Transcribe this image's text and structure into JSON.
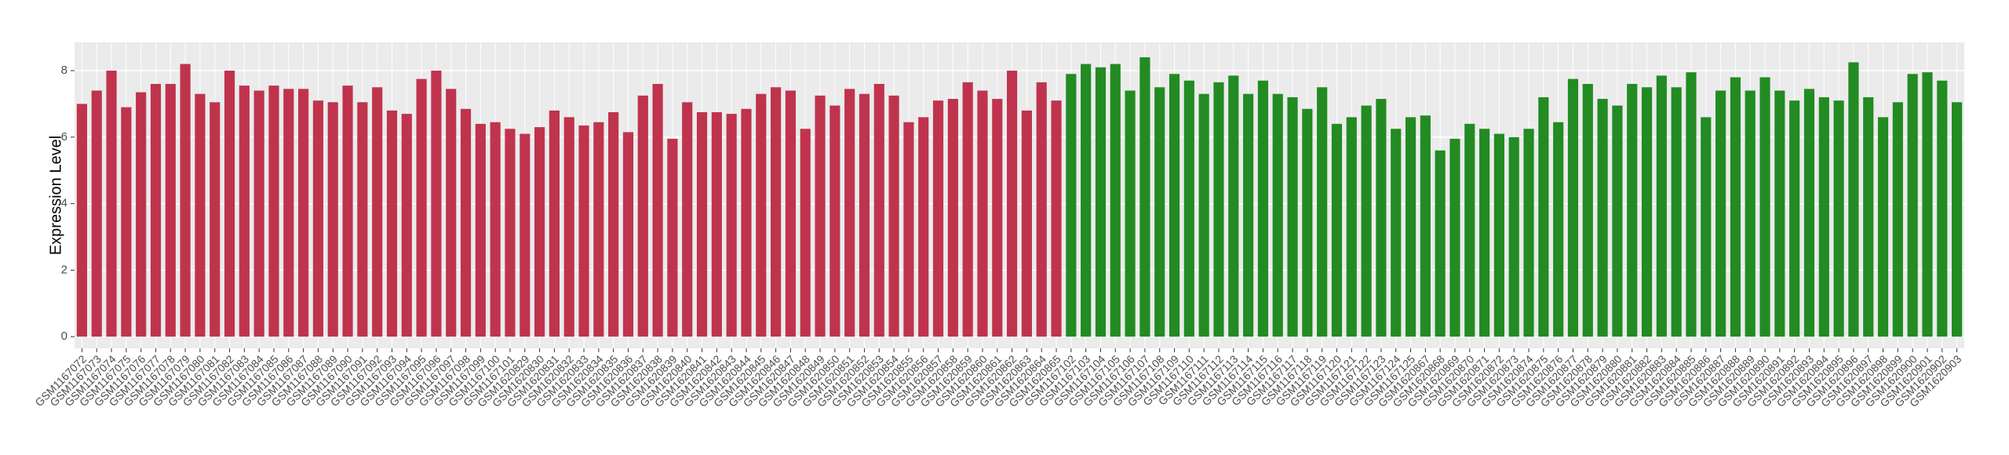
{
  "chart_data": {
    "type": "bar",
    "y_label": "Expression Level",
    "ylim": [
      -0.35,
      8.85
    ],
    "yticks": [
      0,
      2,
      4,
      6,
      8
    ],
    "grid": true,
    "categories": [
      "GSM1167072",
      "GSM1167073",
      "GSM1167074",
      "GSM1167075",
      "GSM1167076",
      "GSM1167077",
      "GSM1167078",
      "GSM1167079",
      "GSM1167080",
      "GSM1167081",
      "GSM1167082",
      "GSM1167083",
      "GSM1167084",
      "GSM1167085",
      "GSM1167086",
      "GSM1167087",
      "GSM1167088",
      "GSM1167089",
      "GSM1167090",
      "GSM1167091",
      "GSM1167092",
      "GSM1167093",
      "GSM1167094",
      "GSM1167095",
      "GSM1167096",
      "GSM1167097",
      "GSM1167098",
      "GSM1167099",
      "GSM1167100",
      "GSM1167101",
      "GSM1620829",
      "GSM1620830",
      "GSM1620831",
      "GSM1620832",
      "GSM1620833",
      "GSM1620834",
      "GSM1620835",
      "GSM1620836",
      "GSM1620837",
      "GSM1620838",
      "GSM1620839",
      "GSM1620840",
      "GSM1620841",
      "GSM1620842",
      "GSM1620843",
      "GSM1620844",
      "GSM1620845",
      "GSM1620846",
      "GSM1620847",
      "GSM1620848",
      "GSM1620849",
      "GSM1620850",
      "GSM1620851",
      "GSM1620852",
      "GSM1620853",
      "GSM1620854",
      "GSM1620855",
      "GSM1620856",
      "GSM1620857",
      "GSM1620858",
      "GSM1620859",
      "GSM1620860",
      "GSM1620861",
      "GSM1620862",
      "GSM1620863",
      "GSM1620864",
      "GSM1620865",
      "GSM1167102",
      "GSM1167103",
      "GSM1167104",
      "GSM1167105",
      "GSM1167106",
      "GSM1167107",
      "GSM1167108",
      "GSM1167109",
      "GSM1167110",
      "GSM1167111",
      "GSM1167112",
      "GSM1167113",
      "GSM1167114",
      "GSM1167115",
      "GSM1167116",
      "GSM1167117",
      "GSM1167118",
      "GSM1167119",
      "GSM1167120",
      "GSM1167121",
      "GSM1167122",
      "GSM1167123",
      "GSM1167124",
      "GSM1167125",
      "GSM1620867",
      "GSM1620868",
      "GSM1620869",
      "GSM1620870",
      "GSM1620871",
      "GSM1620872",
      "GSM1620873",
      "GSM1620874",
      "GSM1620875",
      "GSM1620876",
      "GSM1620877",
      "GSM1620878",
      "GSM1620879",
      "GSM1620880",
      "GSM1620881",
      "GSM1620882",
      "GSM1620883",
      "GSM1620884",
      "GSM1620885",
      "GSM1620886",
      "GSM1620887",
      "GSM1620888",
      "GSM1620889",
      "GSM1620890",
      "GSM1620891",
      "GSM1620892",
      "GSM1620893",
      "GSM1620894",
      "GSM1620895",
      "GSM1620896",
      "GSM1620897",
      "GSM1620898",
      "GSM1620899",
      "GSM1620900",
      "GSM1620901",
      "GSM1620902",
      "GSM1620903"
    ],
    "series": [
      {
        "color": "#c0334d",
        "values": [
          7.0,
          7.4,
          8.0,
          6.9,
          7.35,
          7.6,
          7.6,
          8.2,
          7.3,
          7.05,
          8.0,
          7.55,
          7.4,
          7.55,
          7.45,
          7.45,
          7.1,
          7.05,
          7.55,
          7.05,
          7.5,
          6.8,
          6.7,
          7.75,
          8.0,
          7.45,
          6.85,
          6.4,
          6.45,
          6.25,
          6.1,
          6.3,
          6.8,
          6.6,
          6.35,
          6.45,
          6.75,
          6.15,
          7.25,
          7.6,
          5.95,
          7.05,
          6.75,
          6.75,
          6.7,
          6.85,
          7.3,
          7.5,
          7.4,
          6.25,
          7.25,
          6.95,
          7.45,
          7.3,
          7.6,
          7.25,
          6.45,
          6.6,
          7.1,
          7.15,
          7.65,
          7.4,
          7.15,
          8.0,
          6.8,
          7.65,
          7.1,
          null,
          null,
          null,
          null,
          null,
          null,
          null,
          null,
          null,
          null,
          null,
          null,
          null,
          null,
          null,
          null,
          null,
          null,
          null,
          null,
          null,
          null,
          null,
          null,
          null,
          null,
          null,
          null,
          null,
          null,
          null,
          null,
          null,
          null,
          null,
          null,
          null,
          null,
          null,
          null,
          null,
          null,
          null,
          null,
          null,
          null,
          null,
          null,
          null,
          null,
          null,
          null,
          null,
          null,
          null,
          null,
          null,
          null,
          null,
          null,
          null
        ]
      },
      {
        "color": "#228b22",
        "values": [
          null,
          null,
          null,
          null,
          null,
          null,
          null,
          null,
          null,
          null,
          null,
          null,
          null,
          null,
          null,
          null,
          null,
          null,
          null,
          null,
          null,
          null,
          null,
          null,
          null,
          null,
          null,
          null,
          null,
          null,
          null,
          null,
          null,
          null,
          null,
          null,
          null,
          null,
          null,
          null,
          null,
          null,
          null,
          null,
          null,
          null,
          null,
          null,
          null,
          null,
          null,
          null,
          null,
          null,
          null,
          null,
          null,
          null,
          null,
          null,
          null,
          null,
          null,
          null,
          null,
          null,
          null,
          7.9,
          8.2,
          8.1,
          8.2,
          7.4,
          8.4,
          7.5,
          7.9,
          7.7,
          7.3,
          7.65,
          7.85,
          7.3,
          7.7,
          7.3,
          7.2,
          6.85,
          7.5,
          6.4,
          6.6,
          6.95,
          7.15,
          6.25,
          6.6,
          6.65,
          5.6,
          5.95,
          6.4,
          6.25,
          6.1,
          6.0,
          6.25,
          7.2,
          6.45,
          7.75,
          7.6,
          7.15,
          6.95,
          7.6,
          7.5,
          7.85,
          7.5,
          7.95,
          6.6,
          7.4,
          7.8,
          7.4,
          7.8,
          7.4,
          7.1,
          7.45,
          7.2,
          7.1,
          8.25,
          7.2,
          6.6,
          7.05,
          7.9,
          7.95,
          7.7,
          7.05
        ]
      }
    ]
  }
}
